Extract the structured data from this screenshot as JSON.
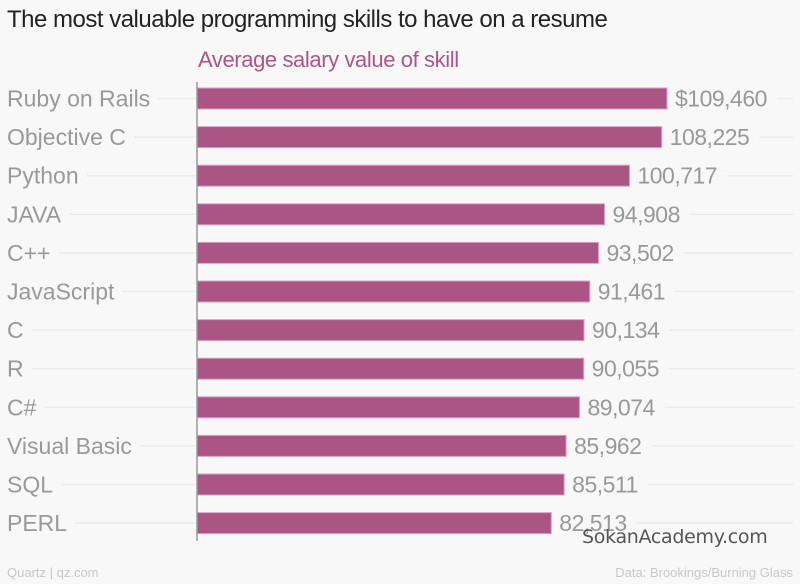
{
  "header": {
    "title": "The most valuable programming skills to have on a resume",
    "subtitle": "Average salary value of skill"
  },
  "footer": {
    "source_left": "Quartz | qz.com",
    "source_right": "Data: Brookings/Burning Glass"
  },
  "watermark": "SokanAcademy.com",
  "colors": {
    "bar": "#ab5585",
    "bar_edge": "#d9a3c1",
    "label": "#999999",
    "gridline": "#ebebeb",
    "axis": "#999999"
  },
  "chart_data": {
    "type": "bar",
    "orientation": "horizontal",
    "title": "The most valuable programming skills to have on a resume",
    "subtitle": "Average salary value of skill",
    "xlabel": "",
    "ylabel": "",
    "xlim": [
      0,
      109460
    ],
    "grid": true,
    "categories": [
      "Ruby on Rails",
      "Objective C",
      "Python",
      "JAVA",
      "C++",
      "JavaScript",
      "C",
      "R",
      "C#",
      "Visual Basic",
      "SQL",
      "PERL"
    ],
    "values": [
      109460,
      108225,
      100717,
      94908,
      93502,
      91461,
      90134,
      90055,
      89074,
      85962,
      85511,
      82513
    ],
    "value_labels": [
      "$109,460",
      "108,225",
      "100,717",
      "94,908",
      "93,502",
      "91,461",
      "90,134",
      "90,055",
      "89,074",
      "85,962",
      "85,511",
      "82,513"
    ],
    "source": "Data: Brookings/Burning Glass"
  }
}
